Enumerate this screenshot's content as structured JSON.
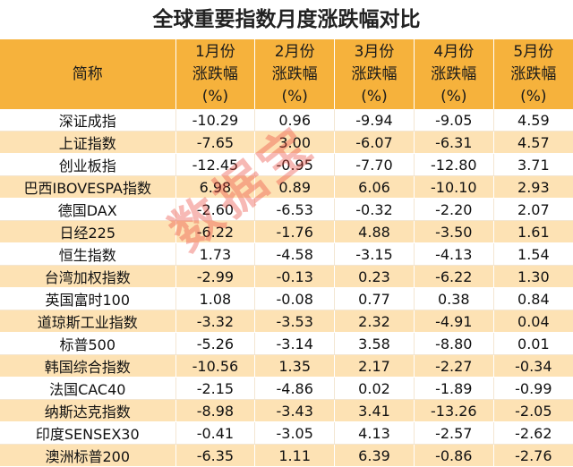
{
  "title": "全球重要指数月度涨跌幅对比",
  "header": {
    "name": "简称",
    "months": [
      {
        "month": "1月份",
        "label": "涨跌幅",
        "unit": "(%)"
      },
      {
        "month": "2月份",
        "label": "涨跌幅",
        "unit": "(%)"
      },
      {
        "month": "3月份",
        "label": "涨跌幅",
        "unit": "(%)"
      },
      {
        "month": "4月份",
        "label": "涨跌幅",
        "unit": "(%)"
      },
      {
        "month": "5月份",
        "label": "涨跌幅",
        "unit": "(%)"
      }
    ]
  },
  "rows": [
    {
      "name": "深证成指",
      "v": [
        "-10.29",
        "0.96",
        "-9.94",
        "-9.05",
        "4.59"
      ]
    },
    {
      "name": "上证指数",
      "v": [
        "-7.65",
        "3.00",
        "-6.07",
        "-6.31",
        "4.57"
      ]
    },
    {
      "name": "创业板指",
      "v": [
        "-12.45",
        "-0.95",
        "-7.70",
        "-12.80",
        "3.71"
      ]
    },
    {
      "name": "巴西IBOVESPA指数",
      "v": [
        "6.98",
        "0.89",
        "6.06",
        "-10.10",
        "2.93"
      ]
    },
    {
      "name": "德国DAX",
      "v": [
        "-2.60",
        "-6.53",
        "-0.32",
        "-2.20",
        "2.07"
      ]
    },
    {
      "name": "日经225",
      "v": [
        "-6.22",
        "-1.76",
        "4.88",
        "-3.50",
        "1.61"
      ]
    },
    {
      "name": "恒生指数",
      "v": [
        "1.73",
        "-4.58",
        "-3.15",
        "-4.13",
        "1.54"
      ]
    },
    {
      "name": "台湾加权指数",
      "v": [
        "-2.99",
        "-0.13",
        "0.23",
        "-6.22",
        "1.30"
      ]
    },
    {
      "name": "英国富时100",
      "v": [
        "1.08",
        "-0.08",
        "0.77",
        "0.38",
        "0.84"
      ]
    },
    {
      "name": "道琼斯工业指数",
      "v": [
        "-3.32",
        "-3.53",
        "2.32",
        "-4.91",
        "0.04"
      ]
    },
    {
      "name": "标普500",
      "v": [
        "-5.26",
        "-3.14",
        "3.58",
        "-8.80",
        "0.01"
      ]
    },
    {
      "name": "韩国综合指数",
      "v": [
        "-10.56",
        "1.35",
        "2.17",
        "-2.27",
        "-0.34"
      ]
    },
    {
      "name": "法国CAC40",
      "v": [
        "-2.15",
        "-4.86",
        "0.02",
        "-1.89",
        "-0.99"
      ]
    },
    {
      "name": "纳斯达克指数",
      "v": [
        "-8.98",
        "-3.43",
        "3.41",
        "-13.26",
        "-2.05"
      ]
    },
    {
      "name": "印度SENSEX30",
      "v": [
        "-0.41",
        "-3.05",
        "4.13",
        "-2.57",
        "-2.62"
      ]
    },
    {
      "name": "澳洲标普200",
      "v": [
        "-6.35",
        "1.11",
        "6.39",
        "-0.86",
        "-2.76"
      ]
    }
  ],
  "watermark": "数据宝"
}
